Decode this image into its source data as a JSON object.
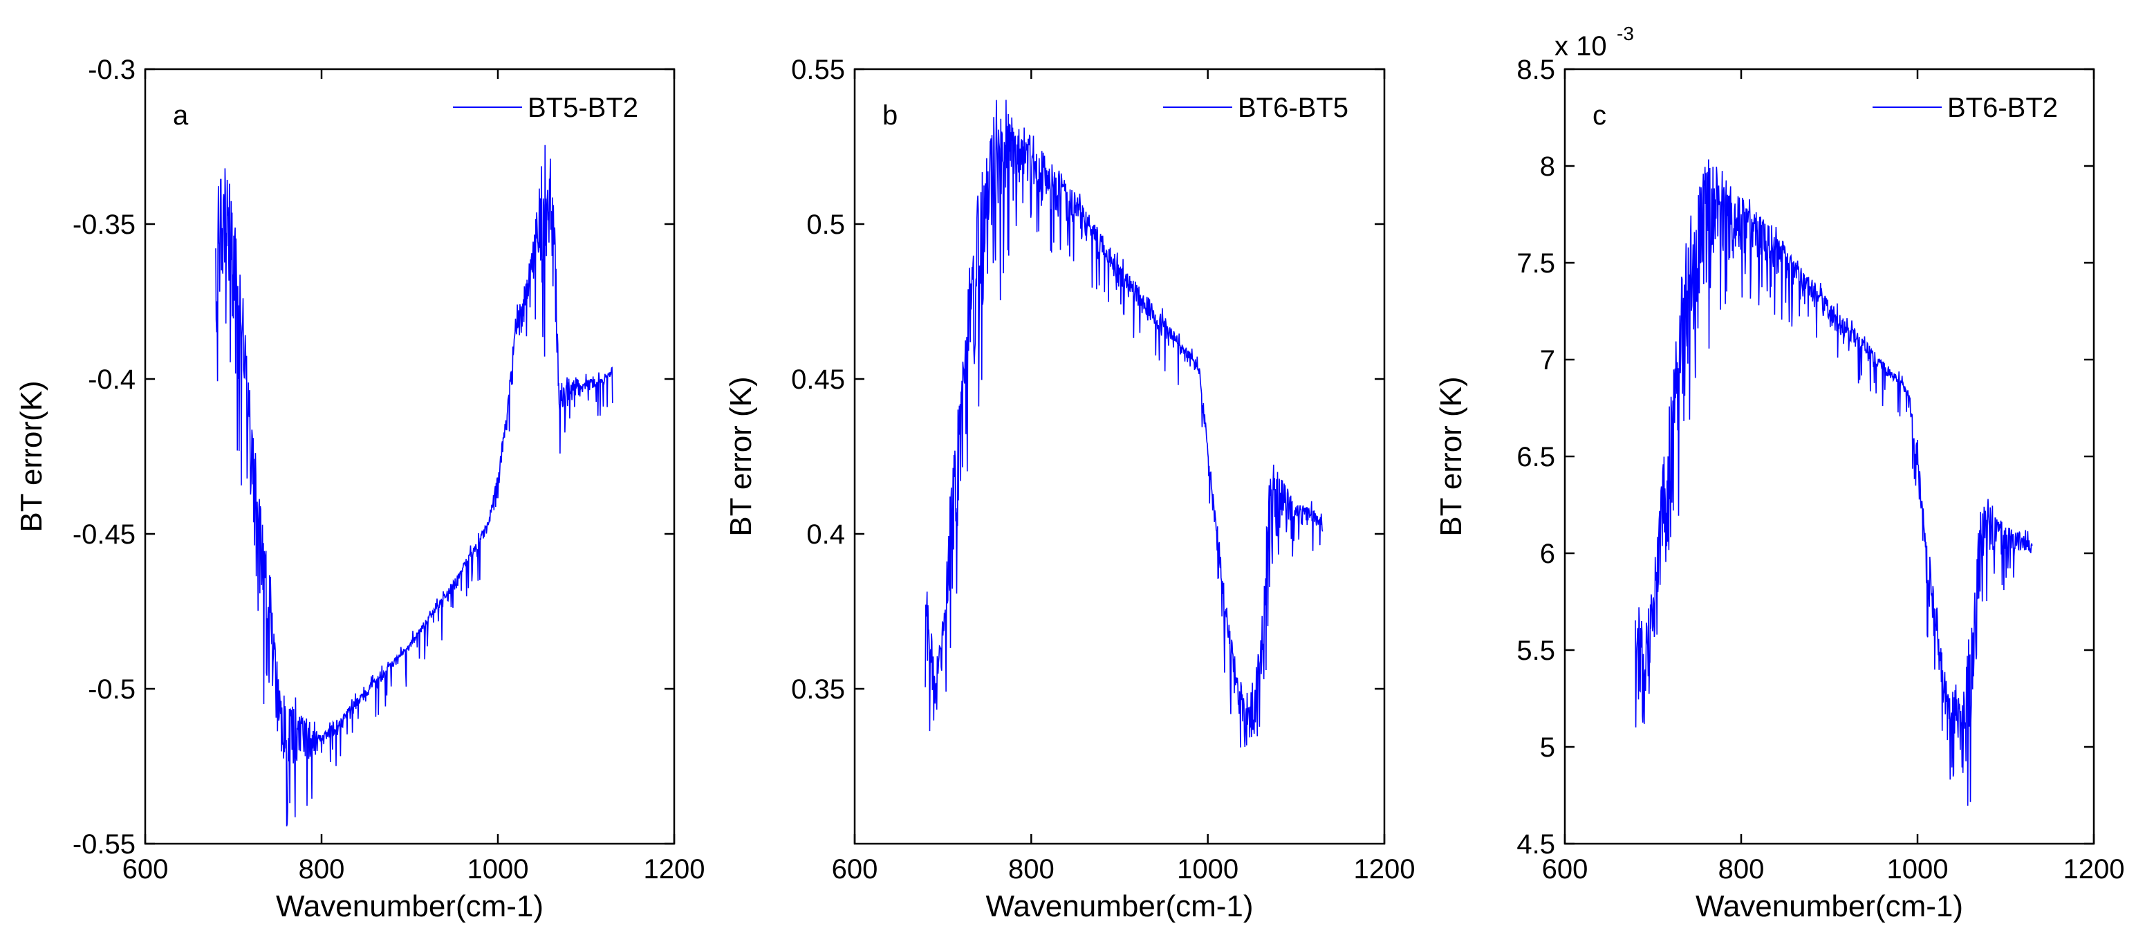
{
  "chart_data": [
    {
      "type": "line",
      "panel": "a",
      "series": [
        {
          "name": "BT5-BT2",
          "color": "#0000ff"
        }
      ],
      "xlabel": "Wavenumber(cm-1)",
      "ylabel": "BT error(K)",
      "xlim": [
        600,
        1200
      ],
      "ylim": [
        -0.55,
        -0.3
      ],
      "xticks": [
        600,
        800,
        1000,
        1200
      ],
      "xtick_labels": [
        "600",
        "800",
        "1000",
        "1200"
      ],
      "yticks": [
        -0.55,
        -0.5,
        -0.45,
        -0.4,
        -0.35,
        -0.3
      ],
      "ytick_labels": [
        "-0.55",
        "-0.5",
        "-0.45",
        "-0.4",
        "-0.35",
        "-0.3"
      ],
      "legend": "top-right",
      "envelope_upper": [
        [
          680,
          -0.34
        ],
        [
          690,
          -0.328
        ],
        [
          700,
          -0.345
        ],
        [
          710,
          -0.37
        ],
        [
          720,
          -0.41
        ],
        [
          730,
          -0.44
        ],
        [
          740,
          -0.46
        ],
        [
          750,
          -0.49
        ],
        [
          760,
          -0.505
        ],
        [
          770,
          -0.505
        ],
        [
          780,
          -0.51
        ],
        [
          800,
          -0.515
        ],
        [
          850,
          -0.5
        ],
        [
          900,
          -0.485
        ],
        [
          950,
          -0.465
        ],
        [
          990,
          -0.445
        ],
        [
          1000,
          -0.43
        ],
        [
          1010,
          -0.41
        ],
        [
          1020,
          -0.38
        ],
        [
          1030,
          -0.37
        ],
        [
          1040,
          -0.355
        ],
        [
          1050,
          -0.33
        ],
        [
          1055,
          -0.315
        ],
        [
          1065,
          -0.35
        ],
        [
          1070,
          -0.405
        ],
        [
          1080,
          -0.4
        ],
        [
          1100,
          -0.4
        ],
        [
          1120,
          -0.4
        ],
        [
          1130,
          -0.396
        ]
      ],
      "envelope_lower": [
        [
          680,
          -0.395
        ],
        [
          690,
          -0.375
        ],
        [
          700,
          -0.4
        ],
        [
          710,
          -0.43
        ],
        [
          720,
          -0.46
        ],
        [
          730,
          -0.49
        ],
        [
          740,
          -0.51
        ],
        [
          750,
          -0.52
        ],
        [
          760,
          -0.535
        ],
        [
          770,
          -0.535
        ],
        [
          780,
          -0.53
        ],
        [
          800,
          -0.522
        ],
        [
          850,
          -0.505
        ],
        [
          900,
          -0.488
        ],
        [
          950,
          -0.47
        ],
        [
          990,
          -0.45
        ],
        [
          1000,
          -0.44
        ],
        [
          1010,
          -0.415
        ],
        [
          1020,
          -0.39
        ],
        [
          1030,
          -0.385
        ],
        [
          1040,
          -0.37
        ],
        [
          1050,
          -0.38
        ],
        [
          1060,
          -0.4
        ],
        [
          1070,
          -0.415
        ],
        [
          1080,
          -0.41
        ],
        [
          1100,
          -0.405
        ],
        [
          1120,
          -0.402
        ],
        [
          1130,
          -0.399
        ]
      ]
    },
    {
      "type": "line",
      "panel": "b",
      "series": [
        {
          "name": "BT6-BT5",
          "color": "#0000ff"
        }
      ],
      "xlabel": "Wavenumber(cm-1)",
      "ylabel": "BT error (K)",
      "xlim": [
        600,
        1200
      ],
      "ylim": [
        0.3,
        0.55
      ],
      "xticks": [
        600,
        800,
        1000,
        1200
      ],
      "xtick_labels": [
        "600",
        "800",
        "1000",
        "1200"
      ],
      "yticks": [
        0.35,
        0.4,
        0.45,
        0.5,
        0.55
      ],
      "ytick_labels": [
        "0.35",
        "0.4",
        "0.45",
        "0.5",
        "0.55"
      ],
      "legend": "top-right",
      "envelope_upper": [
        [
          680,
          0.385
        ],
        [
          690,
          0.36
        ],
        [
          700,
          0.37
        ],
        [
          710,
          0.42
        ],
        [
          720,
          0.45
        ],
        [
          730,
          0.485
        ],
        [
          740,
          0.51
        ],
        [
          750,
          0.52
        ],
        [
          760,
          0.54
        ],
        [
          770,
          0.54
        ],
        [
          780,
          0.535
        ],
        [
          800,
          0.528
        ],
        [
          850,
          0.51
        ],
        [
          900,
          0.488
        ],
        [
          950,
          0.47
        ],
        [
          990,
          0.455
        ],
        [
          1000,
          0.43
        ],
        [
          1010,
          0.405
        ],
        [
          1020,
          0.38
        ],
        [
          1030,
          0.36
        ],
        [
          1040,
          0.35
        ],
        [
          1050,
          0.35
        ],
        [
          1060,
          0.37
        ],
        [
          1070,
          0.42
        ],
        [
          1080,
          0.42
        ],
        [
          1100,
          0.41
        ],
        [
          1120,
          0.408
        ],
        [
          1130,
          0.405
        ]
      ],
      "envelope_lower": [
        [
          680,
          0.345
        ],
        [
          690,
          0.333
        ],
        [
          700,
          0.35
        ],
        [
          710,
          0.37
        ],
        [
          720,
          0.4
        ],
        [
          730,
          0.43
        ],
        [
          740,
          0.45
        ],
        [
          750,
          0.47
        ],
        [
          760,
          0.48
        ],
        [
          770,
          0.49
        ],
        [
          780,
          0.5
        ],
        [
          800,
          0.505
        ],
        [
          850,
          0.495
        ],
        [
          900,
          0.478
        ],
        [
          950,
          0.46
        ],
        [
          990,
          0.45
        ],
        [
          1000,
          0.42
        ],
        [
          1010,
          0.38
        ],
        [
          1020,
          0.36
        ],
        [
          1030,
          0.345
        ],
        [
          1040,
          0.33
        ],
        [
          1050,
          0.32
        ],
        [
          1060,
          0.325
        ],
        [
          1070,
          0.39
        ],
        [
          1080,
          0.395
        ],
        [
          1100,
          0.4
        ],
        [
          1120,
          0.402
        ],
        [
          1130,
          0.4
        ]
      ]
    },
    {
      "type": "line",
      "panel": "c",
      "series": [
        {
          "name": "BT6-BT2",
          "color": "#0000ff"
        }
      ],
      "xlabel": "Wavenumber(cm-1)",
      "ylabel": "BT error (K)",
      "xlim": [
        600,
        1200
      ],
      "ylim": [
        4.5,
        8.5
      ],
      "y_scale_base": "x 10",
      "y_scale_exponent": "-3",
      "xticks": [
        600,
        800,
        1000,
        1200
      ],
      "xtick_labels": [
        "600",
        "800",
        "1000",
        "1200"
      ],
      "yticks": [
        4.5,
        5,
        5.5,
        6,
        6.5,
        7,
        7.5,
        8,
        8.5
      ],
      "ytick_labels": [
        "4.5",
        "5",
        "5.5",
        "6",
        "6.5",
        "7",
        "7.5",
        "8",
        "8.5"
      ],
      "legend": "top-right",
      "envelope_upper": [
        [
          680,
          5.85
        ],
        [
          690,
          5.6
        ],
        [
          700,
          5.8
        ],
        [
          710,
          6.4
        ],
        [
          720,
          6.8
        ],
        [
          730,
          7.3
        ],
        [
          740,
          7.7
        ],
        [
          750,
          7.85
        ],
        [
          760,
          8.05
        ],
        [
          770,
          8.05
        ],
        [
          780,
          7.95
        ],
        [
          800,
          7.85
        ],
        [
          850,
          7.6
        ],
        [
          900,
          7.3
        ],
        [
          950,
          7.05
        ],
        [
          990,
          6.85
        ],
        [
          1000,
          6.55
        ],
        [
          1010,
          6.1
        ],
        [
          1020,
          5.8
        ],
        [
          1030,
          5.4
        ],
        [
          1040,
          5.3
        ],
        [
          1050,
          5.25
        ],
        [
          1060,
          5.6
        ],
        [
          1070,
          6.25
        ],
        [
          1080,
          6.25
        ],
        [
          1100,
          6.15
        ],
        [
          1120,
          6.1
        ],
        [
          1130,
          6.05
        ]
      ],
      "envelope_lower": [
        [
          680,
          5.15
        ],
        [
          690,
          4.97
        ],
        [
          700,
          5.2
        ],
        [
          710,
          5.5
        ],
        [
          720,
          5.9
        ],
        [
          730,
          6.4
        ],
        [
          740,
          6.7
        ],
        [
          750,
          7.0
        ],
        [
          760,
          7.15
        ],
        [
          770,
          7.25
        ],
        [
          780,
          7.4
        ],
        [
          800,
          7.48
        ],
        [
          850,
          7.35
        ],
        [
          900,
          7.15
        ],
        [
          950,
          6.95
        ],
        [
          990,
          6.8
        ],
        [
          1000,
          6.3
        ],
        [
          1010,
          5.75
        ],
        [
          1020,
          5.45
        ],
        [
          1030,
          5.15
        ],
        [
          1040,
          4.9
        ],
        [
          1050,
          4.75
        ],
        [
          1060,
          4.8
        ],
        [
          1070,
          5.85
        ],
        [
          1080,
          5.9
        ],
        [
          1100,
          5.95
        ],
        [
          1120,
          5.98
        ],
        [
          1130,
          5.97
        ]
      ]
    }
  ]
}
